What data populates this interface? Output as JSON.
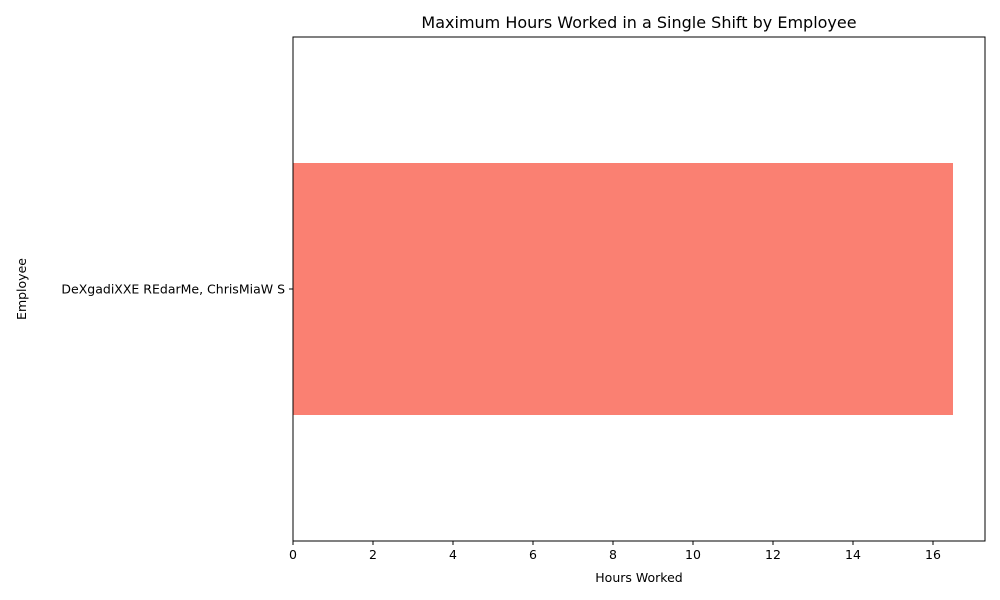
{
  "chart_data": {
    "type": "bar",
    "orientation": "horizontal",
    "title": "Maximum Hours Worked in a Single Shift by Employee",
    "xlabel": "Hours Worked",
    "ylabel": "Employee",
    "categories": [
      "DeXgadiXXE REdarMe, ChrisMiaW S"
    ],
    "values": [
      16.5
    ],
    "xlim": [
      0,
      17.3
    ],
    "xticks": [
      0,
      2,
      4,
      6,
      8,
      10,
      12,
      14,
      16
    ],
    "bar_color": "#fa8072",
    "grid": false,
    "legend": "none"
  }
}
